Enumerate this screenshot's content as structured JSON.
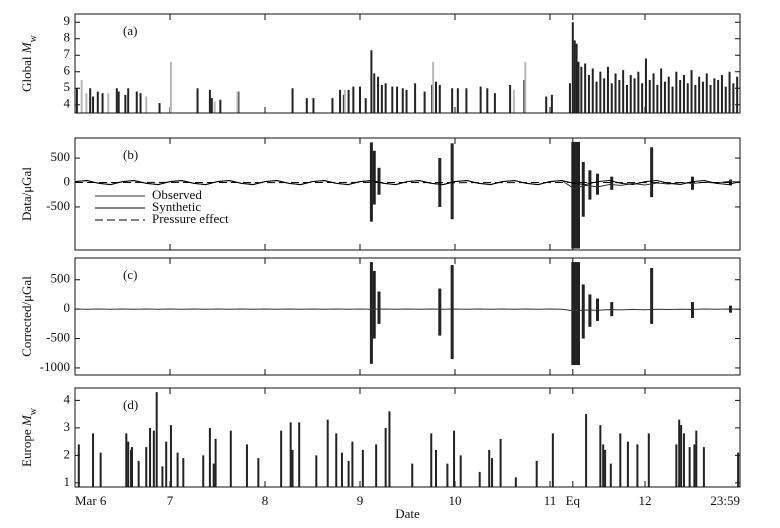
{
  "chart_data": [
    {
      "type": "bar",
      "label": "(a)",
      "ylabel": {
        "text": "Global ",
        "symbol": "M",
        "subscript": "w"
      },
      "xlim": [
        6,
        13
      ],
      "ylim": [
        3.5,
        9.5
      ],
      "yticks": [
        4,
        5,
        6,
        7,
        8,
        9
      ],
      "series": [
        {
          "color": "#222222",
          "x": [
            6.02,
            6.16,
            6.19,
            6.24,
            6.29,
            6.44,
            6.46,
            6.53,
            6.56,
            6.65,
            6.69,
            6.89,
            7.29,
            7.42,
            7.44,
            7.53,
            7.72,
            8.29,
            8.44,
            8.51,
            8.71,
            8.79,
            8.83,
            8.88,
            8.93,
            9.0,
            9.06,
            9.12,
            9.15,
            9.19,
            9.23,
            9.27,
            9.34,
            9.39,
            9.45,
            9.49,
            9.58,
            9.68,
            9.76,
            9.8,
            9.84,
            9.97,
            10.03,
            10.12,
            10.27,
            10.34,
            10.42,
            10.58,
            10.73,
            10.96,
            11.02,
            11.21,
            11.24,
            11.26,
            11.28,
            11.3,
            11.33,
            11.37,
            11.41,
            11.45,
            11.49,
            11.53,
            11.57,
            11.61,
            11.65,
            11.69,
            11.73,
            11.77,
            11.81,
            11.85,
            11.89,
            11.93,
            11.97,
            12.01,
            12.05,
            12.09,
            12.13,
            12.17,
            12.21,
            12.25,
            12.29,
            12.33,
            12.37,
            12.41,
            12.45,
            12.49,
            12.53,
            12.57,
            12.61,
            12.65,
            12.69,
            12.73,
            12.77,
            12.81,
            12.85,
            12.89,
            12.93,
            12.97
          ],
          "values": [
            5.0,
            5.0,
            4.5,
            4.8,
            4.7,
            5.0,
            4.8,
            4.6,
            5.0,
            4.8,
            4.7,
            4.1,
            5.0,
            4.9,
            4.4,
            4.3,
            4.8,
            5.0,
            4.4,
            4.4,
            4.4,
            4.9,
            4.6,
            4.9,
            5.1,
            5.1,
            4.4,
            7.3,
            5.9,
            5.7,
            5.2,
            5.3,
            5.1,
            5.1,
            5.0,
            4.9,
            5.3,
            4.8,
            5.2,
            5.4,
            5.2,
            5.0,
            5.0,
            5.0,
            5.1,
            5.0,
            4.7,
            5.2,
            5.5,
            4.5,
            4.6,
            5.3,
            9.0,
            7.9,
            7.7,
            6.6,
            6.3,
            6.5,
            5.8,
            6.2,
            5.4,
            6.0,
            5.6,
            6.3,
            5.3,
            5.9,
            5.5,
            6.1,
            5.2,
            5.8,
            5.6,
            6.0,
            5.3,
            6.8,
            5.5,
            5.9,
            5.2,
            6.2,
            5.4,
            5.7,
            5.1,
            6.0,
            5.5,
            5.8,
            5.3,
            6.1,
            5.2,
            5.7,
            5.4,
            5.9,
            5.2,
            5.6,
            5.5,
            5.8,
            5.1,
            6.0,
            5.3,
            5.7
          ]
        },
        {
          "color": "#b8b8b8",
          "x": [
            6.07,
            6.12,
            6.35,
            6.75,
            7.01,
            7.47,
            7.71,
            8.84,
            9.77,
            10.62,
            10.74
          ],
          "values": [
            5.5,
            4.7,
            4.7,
            4.5,
            6.6,
            4.2,
            4.8,
            4.9,
            6.6,
            4.9,
            6.6
          ]
        }
      ]
    },
    {
      "type": "line",
      "label": "(b)",
      "ylabel": "Data/μGal",
      "xlim": [
        6,
        13
      ],
      "ylim": [
        -1380,
        910
      ],
      "yticks": [
        -500,
        0,
        500
      ],
      "x": [
        6,
        6.125,
        6.25,
        6.375,
        6.5,
        6.625,
        6.75,
        6.875,
        7,
        7.125,
        7.25,
        7.375,
        7.5,
        7.625,
        7.75,
        7.875,
        8,
        8.125,
        8.25,
        8.375,
        8.5,
        8.625,
        8.75,
        8.875,
        9,
        9.125,
        9.25,
        9.375,
        9.5,
        9.625,
        9.75,
        9.875,
        10,
        10.125,
        10.25,
        10.375,
        10.5,
        10.625,
        10.75,
        10.875,
        11,
        11.125,
        11.25,
        11.375,
        11.5,
        11.625,
        11.75,
        11.875,
        12,
        12.125,
        12.25,
        12.375,
        12.5,
        12.625,
        12.75,
        12.875,
        13
      ],
      "series": [
        {
          "name": "Observed",
          "color": "#333333",
          "values": [
            20,
            38,
            -16,
            -44,
            20,
            38,
            -16,
            -44,
            20,
            38,
            -16,
            -44,
            20,
            38,
            -16,
            -44,
            20,
            38,
            -16,
            -44,
            20,
            38,
            -16,
            -44,
            20,
            38,
            -16,
            -44,
            20,
            38,
            -16,
            -44,
            20,
            38,
            -16,
            -44,
            20,
            38,
            -16,
            -44,
            20,
            38,
            -120,
            -60,
            -90,
            -40,
            -60,
            -20,
            -50,
            -10,
            -30,
            0,
            -20,
            5,
            -10,
            20,
            10
          ]
        },
        {
          "name": "Synthetic",
          "color": "#000000",
          "values": [
            18,
            41,
            -18,
            -41,
            18,
            41,
            -18,
            -41,
            18,
            41,
            -18,
            -41,
            18,
            41,
            -18,
            -41,
            18,
            41,
            -18,
            -41,
            18,
            41,
            -18,
            -41,
            18,
            41,
            -18,
            -41,
            18,
            41,
            -18,
            -41,
            18,
            41,
            -18,
            -41,
            18,
            41,
            -18,
            -41,
            18,
            41,
            -18,
            -41,
            18,
            41,
            -18,
            -41,
            18,
            41,
            -18,
            -41,
            18,
            41,
            -18,
            -41,
            18
          ]
        },
        {
          "name": "Pressure effect",
          "color": "#000000",
          "dash": true,
          "x": [
            6,
            7,
            8,
            9,
            10,
            11,
            12,
            13
          ],
          "values": [
            0,
            3,
            -2,
            2,
            -3,
            1,
            -2,
            0
          ]
        }
      ],
      "bursts": {
        "color": "#222222",
        "x": [
          9.12,
          9.15,
          9.2,
          9.84,
          9.97,
          11.24,
          11.26,
          11.28,
          11.3,
          11.35,
          11.42,
          11.5,
          11.65,
          12.07,
          12.5,
          12.9
        ],
        "max": [
          820,
          650,
          300,
          500,
          800,
          830,
          830,
          830,
          830,
          420,
          250,
          180,
          120,
          720,
          120,
          60
        ],
        "min": [
          -800,
          -450,
          -250,
          -500,
          -750,
          -1350,
          -1350,
          -1350,
          -1350,
          -700,
          -350,
          -250,
          -150,
          -300,
          -150,
          -60
        ]
      }
    },
    {
      "type": "line",
      "label": "(c)",
      "ylabel": "Corrected/μGal",
      "xlim": [
        6,
        13
      ],
      "ylim": [
        -1120,
        870
      ],
      "yticks": [
        -1000,
        -500,
        0,
        500
      ],
      "x": [
        6,
        6.125,
        6.25,
        6.375,
        6.5,
        6.625,
        6.75,
        6.875,
        7,
        7.125,
        7.25,
        7.375,
        7.5,
        7.625,
        7.75,
        7.875,
        8,
        8.125,
        8.25,
        8.375,
        8.5,
        8.625,
        8.75,
        8.875,
        9,
        9.125,
        9.25,
        9.375,
        9.5,
        9.625,
        9.75,
        9.875,
        10,
        10.125,
        10.25,
        10.375,
        10.5,
        10.625,
        10.75,
        10.875,
        11,
        11.125,
        11.25,
        11.375,
        11.5,
        11.625,
        11.75,
        11.875,
        12,
        12.125,
        12.25,
        12.375,
        12.5,
        12.625,
        12.75,
        12.875,
        13
      ],
      "series": [
        {
          "color": "#333333",
          "values": [
            3,
            -2,
            2,
            -3,
            3,
            -2,
            2,
            -3,
            3,
            -2,
            2,
            -3,
            3,
            -2,
            2,
            -3,
            3,
            -2,
            2,
            -3,
            3,
            -2,
            2,
            -3,
            3,
            -2,
            2,
            -3,
            3,
            -2,
            2,
            -3,
            3,
            -2,
            2,
            -3,
            3,
            -2,
            2,
            -3,
            3,
            -2,
            -30,
            -15,
            -20,
            -8,
            -12,
            -4,
            -10,
            -2,
            -6,
            0,
            -4,
            2,
            -2,
            3,
            1
          ]
        }
      ],
      "bursts": {
        "color": "#222222",
        "x": [
          9.12,
          9.15,
          9.2,
          9.84,
          9.97,
          11.24,
          11.26,
          11.28,
          11.3,
          11.35,
          11.42,
          11.5,
          11.65,
          12.07,
          12.5,
          12.9
        ],
        "max": [
          800,
          650,
          300,
          350,
          750,
          800,
          800,
          800,
          800,
          420,
          250,
          180,
          120,
          700,
          120,
          60
        ],
        "min": [
          -930,
          -500,
          -250,
          -450,
          -850,
          -950,
          -950,
          -950,
          -950,
          -500,
          -300,
          -200,
          -120,
          -250,
          -150,
          -60
        ]
      }
    },
    {
      "type": "bar",
      "label": "(d)",
      "ylabel": {
        "text": "Europe ",
        "symbol": "M",
        "subscript": "w"
      },
      "xlabel": "Date",
      "xlim": [
        6,
        13
      ],
      "ylim": [
        0.85,
        4.45
      ],
      "yticks": [
        1,
        2,
        3,
        4
      ],
      "xticks": [
        {
          "value": 6,
          "label": "Mar 6"
        },
        7,
        8,
        9,
        10,
        11,
        {
          "value": 11.24,
          "label": "Eq"
        },
        12,
        {
          "value": 13,
          "label": "23:59"
        }
      ],
      "series": [
        {
          "color": "#222222",
          "x": [
            6.04,
            6.19,
            6.27,
            6.54,
            6.56,
            6.59,
            6.6,
            6.67,
            6.75,
            6.79,
            6.83,
            6.86,
            6.92,
            6.96,
            7.01,
            7.08,
            7.14,
            7.35,
            7.42,
            7.46,
            7.48,
            7.64,
            7.81,
            7.93,
            8.17,
            8.27,
            8.29,
            8.36,
            8.54,
            8.66,
            8.75,
            8.81,
            8.88,
            8.92,
            9.03,
            9.17,
            9.27,
            9.31,
            9.55,
            9.75,
            9.8,
            9.92,
            9.99,
            10.06,
            10.26,
            10.36,
            10.39,
            10.48,
            10.64,
            10.86,
            11.03,
            11.38,
            11.53,
            11.56,
            11.58,
            11.64,
            11.74,
            11.82,
            11.92,
            12.04,
            12.33,
            12.36,
            12.38,
            12.41,
            12.47,
            12.52,
            12.54,
            12.62,
            12.98
          ],
          "values": [
            2.4,
            2.8,
            2.1,
            2.8,
            2.5,
            2.2,
            2.3,
            1.8,
            2.3,
            3.0,
            2.9,
            4.3,
            1.6,
            2.5,
            3.1,
            2.1,
            1.9,
            2.0,
            3.0,
            1.7,
            2.6,
            2.9,
            2.4,
            1.9,
            2.9,
            3.2,
            2.2,
            3.2,
            2.0,
            3.3,
            2.8,
            2.1,
            1.8,
            2.5,
            2.2,
            2.4,
            3.0,
            3.6,
            1.7,
            2.8,
            2.2,
            1.7,
            2.9,
            2.0,
            1.4,
            2.2,
            1.9,
            2.6,
            1.2,
            1.8,
            2.8,
            3.5,
            3.1,
            2.4,
            2.2,
            1.7,
            2.8,
            2.5,
            2.4,
            2.8,
            2.4,
            3.3,
            3.1,
            2.8,
            2.3,
            2.4,
            2.9,
            2.3,
            2.1
          ]
        }
      ]
    }
  ]
}
